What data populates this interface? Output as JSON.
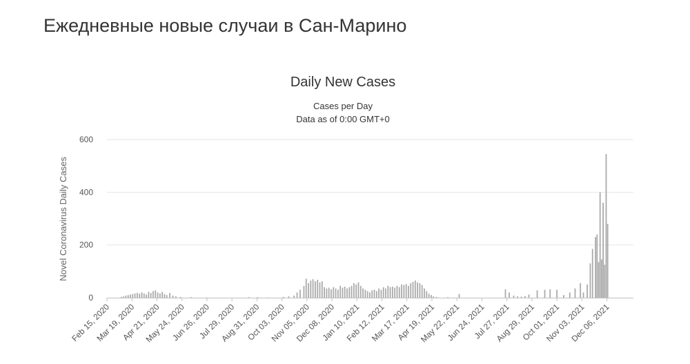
{
  "page": {
    "heading": "Ежедневные новые случаи в Сан-Марино"
  },
  "chart_data": {
    "type": "bar",
    "title": "Daily New Cases",
    "subtitle_lines": [
      "Cases per Day",
      "Data as of 0:00 GMT+0"
    ],
    "xlabel": "",
    "ylabel": "Novel Coronavirus Daily Cases",
    "x_start_date": "2020-02-15",
    "x_end_date": "2022-01-10",
    "x_tick_labels": [
      "Feb 15, 2020",
      "Mar 19, 2020",
      "Apr 21, 2020",
      "May 24, 2020",
      "Jun 26, 2020",
      "Jul 29, 2020",
      "Aug 31, 2020",
      "Oct 03, 2020",
      "Nov 05, 2020",
      "Dec 08, 2020",
      "Jan 10, 2021",
      "Feb 12, 2021",
      "Mar 17, 2021",
      "Apr 19, 2021",
      "May 22, 2021",
      "Jun 24, 2021",
      "Jul 27, 2021",
      "Aug 29, 2021",
      "Oct 01, 2021",
      "Nov 03, 2021",
      "Dec 06, 2021"
    ],
    "y_ticks": [
      0,
      200,
      400,
      600
    ],
    "ylim": [
      0,
      600
    ],
    "grid": true,
    "bar_color": "#aaaaaa",
    "series": [
      {
        "values": [
          [
            "2020-03-05",
            3
          ],
          [
            "2020-03-08",
            5
          ],
          [
            "2020-03-11",
            8
          ],
          [
            "2020-03-14",
            10
          ],
          [
            "2020-03-17",
            12
          ],
          [
            "2020-03-20",
            14
          ],
          [
            "2020-03-23",
            16
          ],
          [
            "2020-03-26",
            18
          ],
          [
            "2020-03-29",
            15
          ],
          [
            "2020-04-01",
            20
          ],
          [
            "2020-04-04",
            16
          ],
          [
            "2020-04-07",
            12
          ],
          [
            "2020-04-10",
            22
          ],
          [
            "2020-04-13",
            18
          ],
          [
            "2020-04-16",
            25
          ],
          [
            "2020-04-19",
            28
          ],
          [
            "2020-04-22",
            20
          ],
          [
            "2020-04-25",
            16
          ],
          [
            "2020-04-28",
            22
          ],
          [
            "2020-05-01",
            14
          ],
          [
            "2020-05-04",
            10
          ],
          [
            "2020-05-08",
            18
          ],
          [
            "2020-05-12",
            8
          ],
          [
            "2020-05-16",
            5
          ],
          [
            "2020-05-22",
            3
          ],
          [
            "2020-06-05",
            2
          ],
          [
            "2020-06-25",
            1
          ],
          [
            "2020-08-20",
            2
          ],
          [
            "2020-09-01",
            2
          ],
          [
            "2020-09-15",
            1
          ],
          [
            "2020-10-05",
            3
          ],
          [
            "2020-10-12",
            5
          ],
          [
            "2020-10-19",
            8
          ],
          [
            "2020-10-23",
            20
          ],
          [
            "2020-10-27",
            30
          ],
          [
            "2020-11-01",
            45
          ],
          [
            "2020-11-04",
            72
          ],
          [
            "2020-11-07",
            55
          ],
          [
            "2020-11-10",
            65
          ],
          [
            "2020-11-13",
            70
          ],
          [
            "2020-11-16",
            62
          ],
          [
            "2020-11-19",
            68
          ],
          [
            "2020-11-22",
            58
          ],
          [
            "2020-11-25",
            62
          ],
          [
            "2020-11-28",
            40
          ],
          [
            "2020-12-01",
            35
          ],
          [
            "2020-12-04",
            38
          ],
          [
            "2020-12-07",
            32
          ],
          [
            "2020-12-10",
            40
          ],
          [
            "2020-12-13",
            35
          ],
          [
            "2020-12-16",
            30
          ],
          [
            "2020-12-19",
            45
          ],
          [
            "2020-12-22",
            38
          ],
          [
            "2020-12-25",
            42
          ],
          [
            "2020-12-28",
            35
          ],
          [
            "2020-12-31",
            40
          ],
          [
            "2021-01-03",
            45
          ],
          [
            "2021-01-06",
            55
          ],
          [
            "2021-01-09",
            50
          ],
          [
            "2021-01-12",
            58
          ],
          [
            "2021-01-15",
            45
          ],
          [
            "2021-01-18",
            35
          ],
          [
            "2021-01-21",
            30
          ],
          [
            "2021-01-24",
            25
          ],
          [
            "2021-01-27",
            20
          ],
          [
            "2021-01-30",
            28
          ],
          [
            "2021-02-02",
            30
          ],
          [
            "2021-02-05",
            25
          ],
          [
            "2021-02-08",
            35
          ],
          [
            "2021-02-11",
            30
          ],
          [
            "2021-02-14",
            40
          ],
          [
            "2021-02-17",
            35
          ],
          [
            "2021-02-20",
            45
          ],
          [
            "2021-02-23",
            40
          ],
          [
            "2021-02-26",
            42
          ],
          [
            "2021-03-01",
            38
          ],
          [
            "2021-03-04",
            45
          ],
          [
            "2021-03-07",
            40
          ],
          [
            "2021-03-10",
            50
          ],
          [
            "2021-03-13",
            48
          ],
          [
            "2021-03-16",
            52
          ],
          [
            "2021-03-19",
            45
          ],
          [
            "2021-03-22",
            55
          ],
          [
            "2021-03-25",
            60
          ],
          [
            "2021-03-28",
            65
          ],
          [
            "2021-03-31",
            58
          ],
          [
            "2021-04-03",
            55
          ],
          [
            "2021-04-06",
            48
          ],
          [
            "2021-04-09",
            35
          ],
          [
            "2021-04-12",
            25
          ],
          [
            "2021-04-15",
            15
          ],
          [
            "2021-04-18",
            10
          ],
          [
            "2021-04-21",
            5
          ],
          [
            "2021-04-25",
            3
          ],
          [
            "2021-05-10",
            2
          ],
          [
            "2021-05-25",
            14
          ],
          [
            "2021-07-25",
            32
          ],
          [
            "2021-07-30",
            20
          ],
          [
            "2021-08-05",
            8
          ],
          [
            "2021-08-10",
            5
          ],
          [
            "2021-08-15",
            4
          ],
          [
            "2021-08-20",
            6
          ],
          [
            "2021-08-25",
            12
          ],
          [
            "2021-09-05",
            28
          ],
          [
            "2021-09-15",
            30
          ],
          [
            "2021-09-22",
            32
          ],
          [
            "2021-10-01",
            30
          ],
          [
            "2021-10-10",
            10
          ],
          [
            "2021-10-18",
            20
          ],
          [
            "2021-10-25",
            35
          ],
          [
            "2021-11-01",
            55
          ],
          [
            "2021-11-05",
            20
          ],
          [
            "2021-11-10",
            50
          ],
          [
            "2021-11-14",
            130
          ],
          [
            "2021-11-17",
            185
          ],
          [
            "2021-11-21",
            230
          ],
          [
            "2021-11-23",
            240
          ],
          [
            "2021-11-25",
            135
          ],
          [
            "2021-11-27",
            400
          ],
          [
            "2021-11-29",
            145
          ],
          [
            "2021-12-01",
            360
          ],
          [
            "2021-12-03",
            125
          ],
          [
            "2021-12-05",
            545
          ],
          [
            "2021-12-07",
            280
          ]
        ]
      }
    ]
  }
}
